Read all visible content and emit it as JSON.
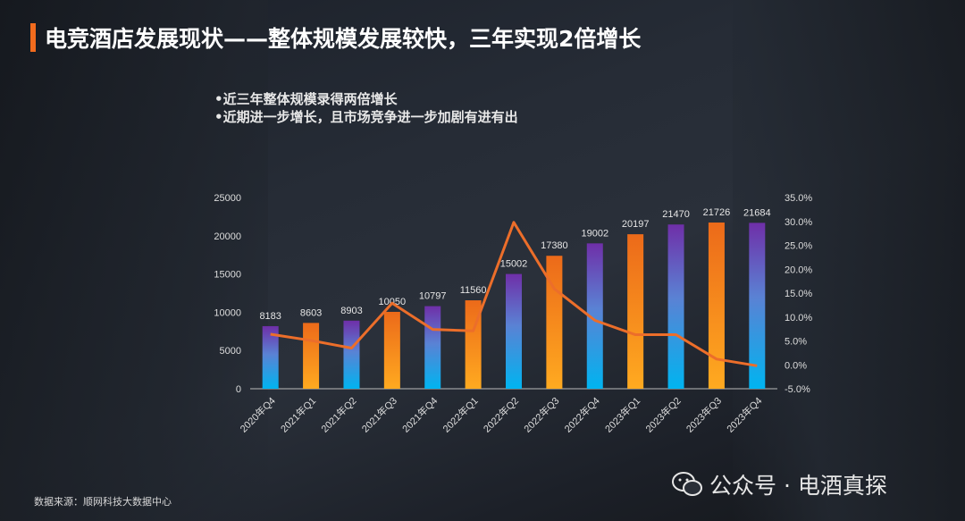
{
  "title": "电竞酒店发展现状——整体规模发展较快，三年实现2倍增长",
  "bullets": [
    "•近三年整体规模录得两倍增长",
    "•近期进一步增长，且市场竞争进一步加剧有进有出"
  ],
  "source": "数据来源：顺网科技大数据中心",
  "watermark": {
    "icon": "wechat-icon",
    "text": "公众号 · 电酒真探"
  },
  "colors": {
    "accent": "#f26b1d",
    "bar_blue_top": "#6f2fa8",
    "bar_blue_bottom": "#00b4f0",
    "bar_orange_top": "#ec6a1a",
    "bar_orange_bottom": "#ffaa20",
    "line": "#ec6e2a"
  },
  "chart_data": {
    "type": "bar+line",
    "categories": [
      "2020年Q4",
      "2021年Q1",
      "2021年Q2",
      "2021年Q3",
      "2021年Q4",
      "2022年Q1",
      "2022年Q2",
      "2022年Q3",
      "2022年Q4",
      "2023年Q1",
      "2023年Q2",
      "2023年Q3",
      "2023年Q4"
    ],
    "bars": [
      8183,
      8603,
      8903,
      10050,
      10797,
      11560,
      15002,
      17380,
      19002,
      20197,
      21470,
      21726,
      21684
    ],
    "line_percent": [
      6.4,
      5.1,
      3.5,
      12.9,
      7.4,
      7.1,
      29.8,
      15.9,
      9.3,
      6.3,
      6.3,
      1.2,
      -0.2
    ],
    "left_axis": {
      "range": [
        0,
        25000
      ],
      "ticks": [
        "0",
        "5000",
        "10000",
        "15000",
        "20000",
        "25000"
      ]
    },
    "right_axis": {
      "range": [
        -5,
        35
      ],
      "ticks": [
        "-5.0%",
        "0.0%",
        "5.0%",
        "10.0%",
        "15.0%",
        "20.0%",
        "25.0%",
        "30.0%",
        "35.0%"
      ]
    },
    "grid": false,
    "legend": "none"
  }
}
